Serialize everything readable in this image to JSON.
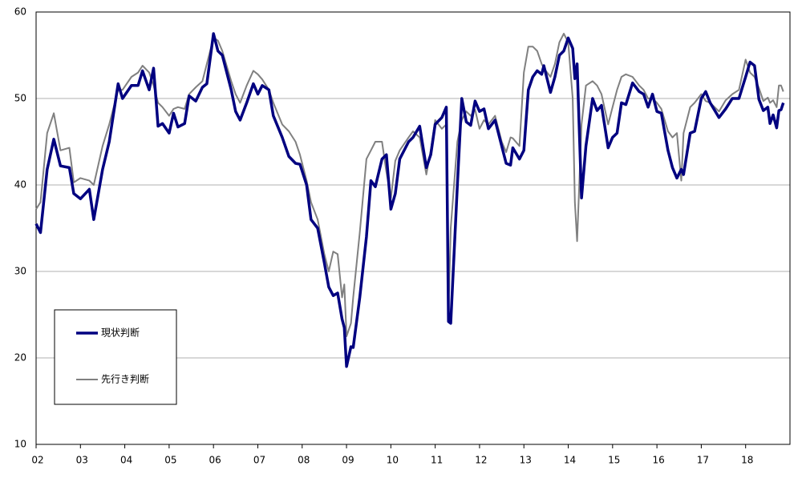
{
  "chart_data": {
    "type": "line",
    "x": [
      2002.0,
      2002.1,
      2002.25,
      2002.4,
      2002.55,
      2002.75,
      2002.85,
      2003.0,
      2003.2,
      2003.3,
      2003.5,
      2003.65,
      2003.85,
      2003.95,
      2004.15,
      2004.3,
      2004.4,
      2004.55,
      2004.65,
      2004.75,
      2004.85,
      2005.0,
      2005.1,
      2005.2,
      2005.35,
      2005.45,
      2005.6,
      2005.75,
      2005.85,
      2006.0,
      2006.1,
      2006.2,
      2006.4,
      2006.5,
      2006.6,
      2006.75,
      2006.9,
      2007.0,
      2007.1,
      2007.25,
      2007.35,
      2007.55,
      2007.7,
      2007.85,
      2007.95,
      2008.1,
      2008.2,
      2008.35,
      2008.5,
      2008.6,
      2008.7,
      2008.8,
      2008.9,
      2008.95,
      2009.0,
      2009.1,
      2009.15,
      2009.3,
      2009.45,
      2009.55,
      2009.65,
      2009.8,
      2009.9,
      2010.0,
      2010.1,
      2010.2,
      2010.4,
      2010.5,
      2010.65,
      2010.8,
      2010.9,
      2011.0,
      2011.15,
      2011.25,
      2011.3,
      2011.35,
      2011.5,
      2011.6,
      2011.7,
      2011.8,
      2011.9,
      2012.0,
      2012.1,
      2012.2,
      2012.35,
      2012.5,
      2012.6,
      2012.7,
      2012.75,
      2012.9,
      2013.0,
      2013.1,
      2013.2,
      2013.3,
      2013.4,
      2013.45,
      2013.6,
      2013.7,
      2013.8,
      2013.9,
      2014.0,
      2014.1,
      2014.15,
      2014.2,
      2014.3,
      2014.4,
      2014.55,
      2014.65,
      2014.75,
      2014.9,
      2015.0,
      2015.1,
      2015.2,
      2015.3,
      2015.45,
      2015.6,
      2015.7,
      2015.8,
      2015.9,
      2016.0,
      2016.1,
      2016.25,
      2016.35,
      2016.45,
      2016.55,
      2016.6,
      2016.75,
      2016.85,
      2017.0,
      2017.1,
      2017.2,
      2017.4,
      2017.55,
      2017.7,
      2017.85,
      2018.0,
      2018.1,
      2018.2,
      2018.3,
      2018.4,
      2018.5,
      2018.55,
      2018.62,
      2018.7,
      2018.75,
      2018.8,
      2018.85
    ],
    "series": [
      {
        "name": "現状判断",
        "color": "#000080",
        "values": [
          35.5,
          34.5,
          41.8,
          45.3,
          42.2,
          42.0,
          39.0,
          38.4,
          39.5,
          36.0,
          41.8,
          45,
          51.7,
          50,
          51.5,
          51.5,
          53.2,
          51,
          53.5,
          46.8,
          47.1,
          46,
          48.3,
          46.7,
          47.1,
          50.3,
          49.7,
          51.3,
          51.7,
          57.5,
          55.5,
          55,
          51,
          48.5,
          47.5,
          49.5,
          51.7,
          50.5,
          51.5,
          51,
          48,
          45.5,
          43.3,
          42.5,
          42.4,
          40,
          36,
          35,
          31,
          28.2,
          27.2,
          27.5,
          24.5,
          23.5,
          19,
          21.3,
          21.2,
          27,
          34,
          40.5,
          39.8,
          43,
          43.5,
          37.2,
          39,
          43,
          45,
          45.5,
          46.8,
          42,
          43.5,
          47,
          47.8,
          49,
          24.2,
          24,
          40,
          50,
          47.3,
          46.9,
          49.7,
          48.5,
          48.8,
          46.5,
          47.5,
          44.5,
          42.5,
          42.3,
          44.3,
          43,
          44,
          51,
          52.5,
          53.2,
          52.8,
          53.8,
          50.7,
          52.5,
          55,
          55.5,
          57,
          55.8,
          52.3,
          54,
          38.5,
          44.5,
          50,
          48.6,
          49.2,
          44.3,
          45.5,
          46,
          49.5,
          49.3,
          51.8,
          50.8,
          50.5,
          49,
          50.5,
          48.5,
          48.3,
          44,
          42,
          40.8,
          41.8,
          41.2,
          46,
          46.2,
          50,
          50.8,
          49.5,
          47.8,
          48.8,
          50,
          50,
          52.5,
          54.2,
          53.8,
          49.9,
          48.6,
          49,
          47.1,
          48.1,
          46.6,
          48.6,
          48.7,
          49.5
        ]
      },
      {
        "name": "先行き判断",
        "color": "#808080",
        "values": [
          37.2,
          38,
          46,
          48.3,
          44,
          44.3,
          40.3,
          40.8,
          40.5,
          40,
          44.5,
          47,
          51,
          51,
          52.5,
          53,
          53.8,
          53,
          51.5,
          49.5,
          49,
          48,
          48.8,
          49,
          48.8,
          50.5,
          51.3,
          52,
          54,
          57,
          56.7,
          55.5,
          52,
          50.5,
          49.5,
          51.5,
          53.2,
          52.8,
          52.2,
          51,
          49.5,
          47,
          46.2,
          45,
          43.5,
          40.5,
          38,
          36,
          32,
          30,
          32.3,
          32,
          27,
          28.5,
          22.5,
          24,
          27,
          34.5,
          43,
          44,
          45,
          45,
          41.5,
          38.5,
          42.8,
          44,
          45.5,
          46.2,
          45.5,
          41.2,
          44,
          47.5,
          46.5,
          47,
          25,
          35,
          45,
          47.5,
          48.5,
          48,
          48.7,
          46.5,
          47.5,
          47,
          48,
          45,
          43.8,
          45.5,
          45.4,
          44.5,
          53,
          56,
          56,
          55.5,
          54,
          53.5,
          52.5,
          54,
          56.5,
          57.5,
          56.5,
          50,
          38,
          33.5,
          47,
          51.5,
          52,
          51.5,
          50.5,
          47,
          49,
          51,
          52.5,
          52.8,
          52.5,
          51.5,
          51,
          50,
          50,
          49.5,
          48.8,
          46.2,
          45.5,
          46,
          40.5,
          46,
          49,
          49.5,
          50.5,
          49.7,
          49.5,
          48.5,
          49.8,
          50.5,
          51,
          54.5,
          53,
          52.5,
          51.2,
          49.7,
          50.1,
          49.5,
          49.8,
          49,
          51.5,
          51.5,
          50.8
        ]
      }
    ],
    "xlim": [
      2002,
      2019
    ],
    "xticks": [
      {
        "value": 2002,
        "label": "02"
      },
      {
        "value": 2003,
        "label": "03"
      },
      {
        "value": 2004,
        "label": "04"
      },
      {
        "value": 2005,
        "label": "05"
      },
      {
        "value": 2006,
        "label": "06"
      },
      {
        "value": 2007,
        "label": "07"
      },
      {
        "value": 2008,
        "label": "08"
      },
      {
        "value": 2009,
        "label": "09"
      },
      {
        "value": 2010,
        "label": "10"
      },
      {
        "value": 2011,
        "label": "11"
      },
      {
        "value": 2012,
        "label": "12"
      },
      {
        "value": 2013,
        "label": "13"
      },
      {
        "value": 2014,
        "label": "14"
      },
      {
        "value": 2015,
        "label": "15"
      },
      {
        "value": 2016,
        "label": "16"
      },
      {
        "value": 2017,
        "label": "17"
      },
      {
        "value": 2018,
        "label": "18"
      }
    ],
    "ylim": [
      10,
      60
    ],
    "yticks": [
      10,
      20,
      30,
      40,
      50,
      60
    ],
    "grid": true
  }
}
